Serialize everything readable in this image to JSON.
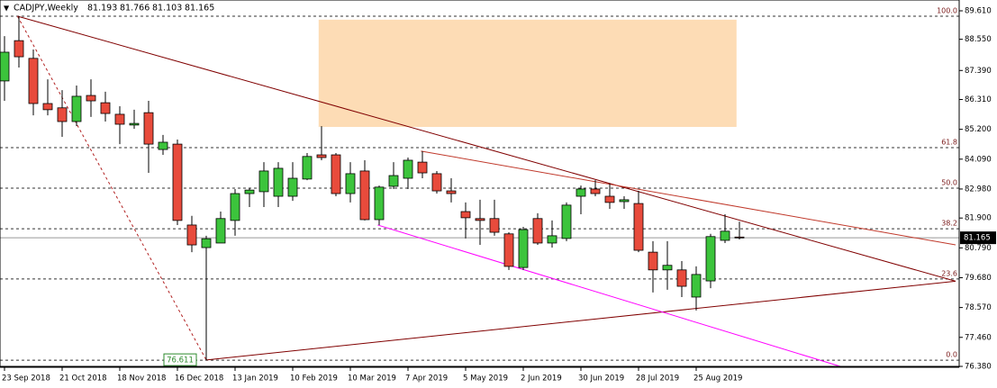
{
  "chart_data": {
    "type": "candlestick",
    "title": "CADJPY,Weekly",
    "categories": [
      "23 Sep 2018",
      null,
      null,
      null,
      "21 Oct 2018",
      null,
      null,
      null,
      "18 Nov 2018",
      null,
      null,
      null,
      "16 Dec 2018",
      null,
      null,
      null,
      "13 Jan 2019",
      null,
      null,
      null,
      "10 Feb 2019",
      null,
      null,
      null,
      "10 Mar 2019",
      null,
      null,
      null,
      "7 Apr 2019",
      null,
      null,
      null,
      "5 May 2019",
      null,
      null,
      null,
      "2 Jun 2019",
      null,
      null,
      null,
      "30 Jun 2019",
      null,
      null,
      null,
      "28 Jul 2019",
      null,
      null,
      null,
      "25 Aug 2019",
      null,
      null,
      null
    ],
    "open": [
      87.0,
      88.5,
      87.84,
      86.16,
      86.0,
      85.49,
      86.46,
      86.19,
      85.76,
      85.36,
      85.82,
      84.45,
      84.65,
      81.64,
      80.8,
      80.97,
      81.81,
      82.81,
      82.88,
      82.71,
      82.71,
      83.35,
      84.25,
      84.25,
      82.81,
      83.65,
      81.84,
      83.08,
      83.38,
      83.98,
      83.55,
      82.91,
      82.14,
      81.88,
      81.88,
      81.31,
      80.06,
      81.88,
      80.97,
      81.14,
      82.71,
      82.98,
      82.71,
      82.51,
      82.44,
      80.63,
      79.97,
      79.97,
      78.96,
      79.56,
      81.07,
      81.193
    ],
    "high": [
      88.67,
      89.41,
      88.17,
      87.06,
      86.66,
      86.83,
      87.06,
      86.6,
      86.06,
      85.93,
      86.26,
      84.99,
      84.82,
      81.98,
      81.24,
      82.14,
      82.98,
      83.02,
      83.98,
      83.98,
      83.98,
      84.32,
      85.32,
      84.32,
      83.98,
      84.05,
      83.11,
      83.98,
      84.15,
      84.39,
      83.65,
      83.38,
      82.48,
      82.58,
      82.58,
      81.37,
      81.57,
      82.08,
      81.81,
      82.48,
      83.11,
      83.31,
      83.18,
      82.71,
      82.91,
      81.04,
      81.04,
      80.3,
      80.1,
      81.31,
      82.04,
      81.766
    ],
    "low": [
      86.26,
      87.5,
      85.72,
      85.72,
      84.92,
      85.32,
      85.66,
      85.49,
      84.65,
      85.22,
      83.58,
      84.25,
      81.64,
      80.63,
      76.611,
      80.97,
      81.24,
      82.31,
      82.31,
      82.31,
      82.54,
      83.31,
      84.05,
      82.71,
      82.48,
      81.81,
      81.64,
      82.98,
      82.98,
      83.38,
      82.81,
      82.48,
      81.14,
      80.9,
      81.24,
      79.97,
      79.97,
      80.9,
      80.8,
      81.04,
      82.04,
      82.71,
      82.24,
      82.24,
      80.63,
      79.13,
      79.23,
      78.96,
      78.46,
      79.29,
      80.97,
      81.103
    ],
    "close": [
      88.07,
      87.9,
      86.16,
      85.93,
      85.49,
      86.43,
      86.26,
      85.79,
      85.39,
      85.42,
      84.65,
      84.72,
      81.81,
      80.9,
      81.13,
      81.88,
      82.81,
      82.94,
      83.65,
      83.75,
      83.38,
      84.19,
      84.15,
      82.81,
      83.55,
      81.84,
      83.05,
      83.48,
      84.05,
      83.58,
      82.91,
      82.81,
      81.91,
      81.81,
      81.37,
      80.1,
      81.47,
      80.97,
      81.24,
      82.38,
      82.98,
      82.81,
      82.48,
      82.58,
      80.7,
      79.97,
      80.14,
      79.36,
      79.8,
      81.21,
      81.41,
      81.165
    ],
    "up_color": "#3cc43c",
    "down_color": "#e84b3c",
    "ylim": [
      76.38,
      89.61
    ],
    "yticks": [
      {
        "value": 89.61,
        "label": "89.610"
      },
      {
        "value": 88.55,
        "label": "88.550"
      },
      {
        "value": 87.39,
        "label": "87.390"
      },
      {
        "value": 86.31,
        "label": "86.310"
      },
      {
        "value": 85.2,
        "label": "85.200"
      },
      {
        "value": 84.09,
        "label": "84.090"
      },
      {
        "value": 82.98,
        "label": "82.980"
      },
      {
        "value": 81.9,
        "label": "81.900"
      },
      {
        "value": 80.79,
        "label": "80.790"
      },
      {
        "value": 79.68,
        "label": "79.680"
      },
      {
        "value": 78.57,
        "label": "78.570"
      },
      {
        "value": 77.46,
        "label": "77.460"
      },
      {
        "value": 76.38,
        "label": "76.380"
      }
    ],
    "fib_levels": [
      {
        "value": 100,
        "label": "100.0"
      },
      {
        "value": 61.8,
        "label": "61.8"
      },
      {
        "value": 50,
        "label": "50.0"
      },
      {
        "value": 38.2,
        "label": "38.2"
      },
      {
        "value": 23.6,
        "label": "23.6"
      },
      {
        "value": 0,
        "label": "0.0"
      }
    ],
    "zone": {
      "x": [
        21.8,
        50.8
      ],
      "y": [
        89.28,
        85.29
      ],
      "color": "#fddcb5"
    },
    "lines": [
      {
        "x": [
          0.9,
          66
        ],
        "y": [
          89.41,
          79.55
        ],
        "color": "#800000"
      },
      {
        "x": [
          14,
          66
        ],
        "y": [
          76.62,
          79.55
        ],
        "color": "#800000"
      },
      {
        "x": [
          28.9,
          66
        ],
        "y": [
          84.39,
          80.9
        ],
        "color": "#c0392b"
      },
      {
        "x": [
          25.9,
          58
        ],
        "y": [
          81.64,
          76.38
        ],
        "color": "#ff00ff"
      },
      {
        "x": [
          0.9,
          14
        ],
        "y": [
          89.41,
          76.62
        ],
        "color": "#b22222",
        "dashed": true
      }
    ]
  }
}
